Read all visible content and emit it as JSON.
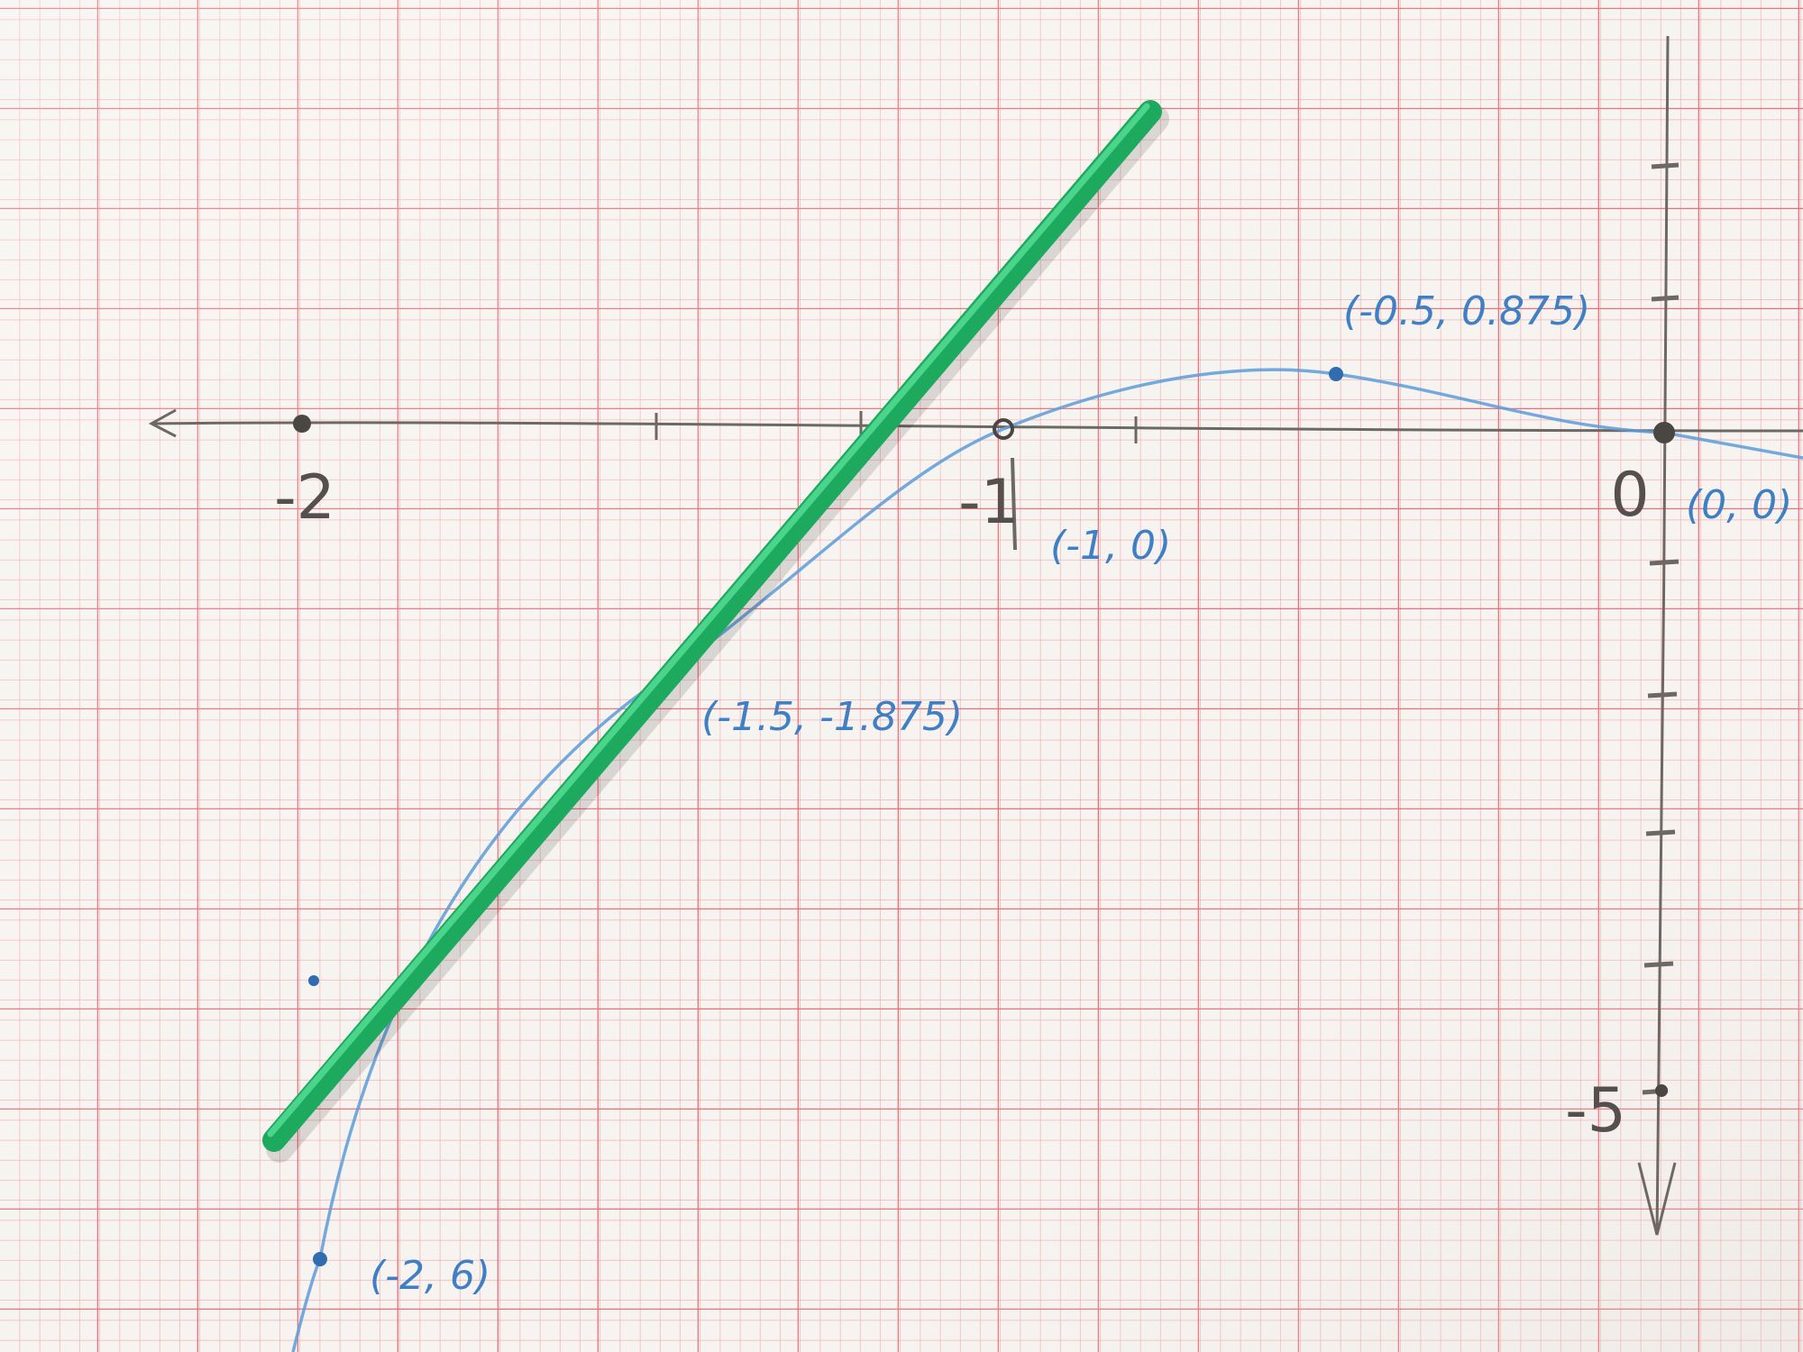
{
  "axis_labels": [
    "-2",
    "-1",
    "0",
    "-5"
  ],
  "point_labels": [
    "(-0.5, 0.875)",
    "(-1, 0)",
    "(-1.5, -1.875)",
    "(-2, 6)",
    "(0, 0)"
  ]
}
